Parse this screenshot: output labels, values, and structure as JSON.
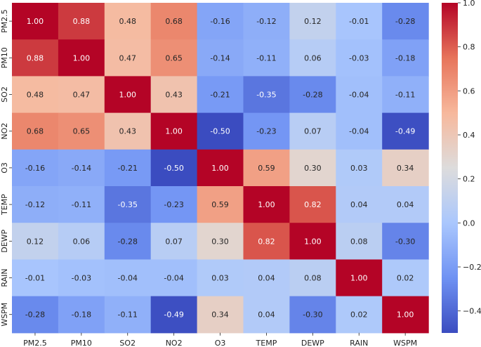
{
  "chart_data": {
    "type": "heatmap",
    "title": "",
    "xlabel": "",
    "ylabel": "",
    "x_labels": [
      "PM2.5",
      "PM10",
      "SO2",
      "NO2",
      "O3",
      "TEMP",
      "DEWP",
      "RAIN",
      "WSPM"
    ],
    "y_labels": [
      "PM2.5",
      "PM10",
      "SO2",
      "NO2",
      "O3",
      "TEMP",
      "DEWP",
      "RAIN",
      "WSPM"
    ],
    "values": [
      [
        1.0,
        0.88,
        0.48,
        0.68,
        -0.16,
        -0.12,
        0.12,
        -0.01,
        -0.28
      ],
      [
        0.88,
        1.0,
        0.47,
        0.65,
        -0.14,
        -0.11,
        0.06,
        -0.03,
        -0.18
      ],
      [
        0.48,
        0.47,
        1.0,
        0.43,
        -0.21,
        -0.35,
        -0.28,
        -0.04,
        -0.11
      ],
      [
        0.68,
        0.65,
        0.43,
        1.0,
        -0.5,
        -0.23,
        0.07,
        -0.04,
        -0.49
      ],
      [
        -0.16,
        -0.14,
        -0.21,
        -0.5,
        1.0,
        0.59,
        0.3,
        0.03,
        0.34
      ],
      [
        -0.12,
        -0.11,
        -0.35,
        -0.23,
        0.59,
        1.0,
        0.82,
        0.04,
        0.04
      ],
      [
        0.12,
        0.06,
        -0.28,
        0.07,
        0.3,
        0.82,
        1.0,
        0.08,
        -0.3
      ],
      [
        -0.01,
        -0.03,
        -0.04,
        -0.04,
        0.03,
        0.04,
        0.08,
        1.0,
        0.02
      ],
      [
        -0.28,
        -0.18,
        -0.11,
        -0.49,
        0.34,
        0.04,
        -0.3,
        0.02,
        1.0
      ]
    ],
    "vmin": -0.5,
    "vmax": 1.0,
    "colormap": "coolwarm",
    "colormap_stops": [
      "#3b4cc0",
      "#6f92f3",
      "#aac7fd",
      "#dddcdc",
      "#f7b89c",
      "#e7745b",
      "#b40426"
    ],
    "colorbar_ticks": [
      1.0,
      0.8,
      0.6,
      0.4,
      0.2,
      0.0,
      -0.2,
      -0.4
    ],
    "colorbar_tick_labels": [
      "1.0",
      "0.8",
      "0.6",
      "0.4",
      "0.2",
      "0.0",
      "−0.2",
      "−0.4"
    ],
    "value_format": "2 decimals",
    "grid": false,
    "legend": "colorbar right"
  }
}
